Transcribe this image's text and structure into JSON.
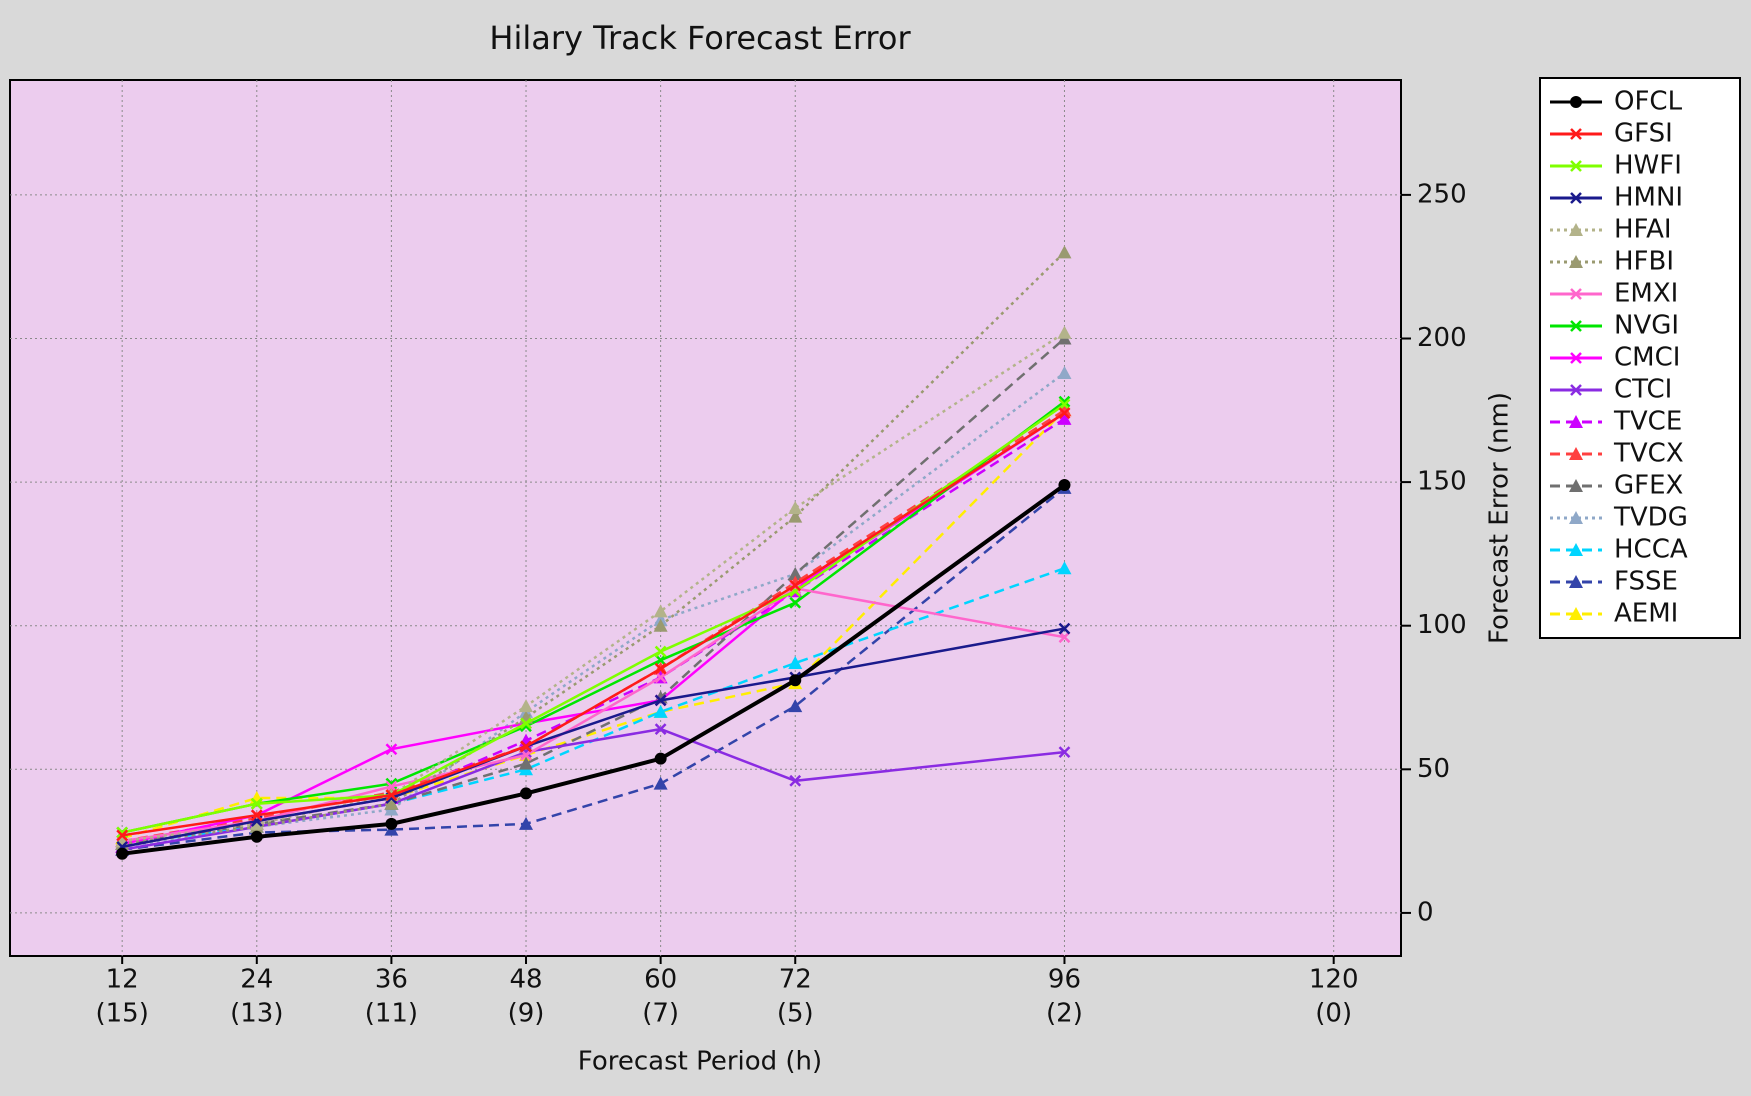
{
  "chart_data": {
    "type": "line",
    "title": "Hilary Track Forecast Error",
    "x_label": "Forecast Period (h)",
    "y_label": "Forecast Error (nm)",
    "x": [
      12,
      24,
      36,
      48,
      60,
      72,
      96
    ],
    "xticks": [
      12,
      24,
      36,
      48,
      60,
      72,
      96,
      120
    ],
    "xtick_counts": [
      "(15)",
      "(13)",
      "(11)",
      "(9)",
      "(7)",
      "(5)",
      "(2)",
      "(0)"
    ],
    "xlim": [
      2,
      126
    ],
    "ylim": [
      -15,
      290
    ],
    "yticks": [
      0,
      50,
      100,
      150,
      200,
      250
    ],
    "grid": true,
    "plot_background": "#ecccee",
    "series": [
      {
        "name": "OFCL",
        "color": "#000000",
        "marker": "o",
        "dash": "solid",
        "values": [
          20.6,
          26.5,
          31,
          41.6,
          53.7,
          81,
          149
        ]
      },
      {
        "name": "GFSI",
        "color": "#ff1a1a",
        "marker": "x",
        "dash": "solid",
        "values": [
          27,
          34,
          41,
          58,
          85,
          114,
          174
        ]
      },
      {
        "name": "HWFI",
        "color": "#7fff00",
        "marker": "x",
        "dash": "solid",
        "values": [
          28,
          38,
          41,
          66,
          91,
          112,
          177
        ]
      },
      {
        "name": "HMNI",
        "color": "#1a1a8c",
        "marker": "x",
        "dash": "solid",
        "values": [
          23,
          32,
          40,
          58,
          74,
          82,
          99
        ]
      },
      {
        "name": "HFAI",
        "color": "#b3b38a",
        "marker": "^",
        "dash": "dotted",
        "values": [
          25,
          31,
          41,
          72,
          105,
          141,
          202
        ]
      },
      {
        "name": "HFBI",
        "color": "#9a9a70",
        "marker": "^",
        "dash": "dotted",
        "values": [
          24,
          30,
          38,
          68,
          100,
          138,
          230
        ]
      },
      {
        "name": "EMXI",
        "color": "#ff66cc",
        "marker": "x",
        "dash": "solid",
        "values": [
          25,
          32,
          44,
          55,
          82,
          113,
          96
        ]
      },
      {
        "name": "NVGI",
        "color": "#00e600",
        "marker": "x",
        "dash": "solid",
        "values": [
          28,
          38,
          45,
          65,
          88,
          108,
          178
        ]
      },
      {
        "name": "CMCI",
        "color": "#ff00ff",
        "marker": "x",
        "dash": "solid",
        "values": [
          24,
          34,
          57,
          66,
          74,
          113,
          174
        ]
      },
      {
        "name": "CTCI",
        "color": "#8a2be2",
        "marker": "x",
        "dash": "solid",
        "values": [
          22,
          30,
          38,
          56,
          64,
          46,
          56
        ]
      },
      {
        "name": "TVCE",
        "color": "#cc00ff",
        "marker": "^",
        "dash": "dashed",
        "values": [
          23,
          32,
          40,
          60,
          82,
          112,
          172
        ]
      },
      {
        "name": "TVCX",
        "color": "#ff4040",
        "marker": "^",
        "dash": "dashed",
        "values": [
          25,
          33,
          42,
          58,
          85,
          115,
          175
        ]
      },
      {
        "name": "GFEX",
        "color": "#707070",
        "marker": "^",
        "dash": "dashed",
        "values": [
          24,
          31,
          38,
          52,
          75,
          118,
          200
        ]
      },
      {
        "name": "TVDG",
        "color": "#8fa8c8",
        "marker": "^",
        "dash": "dotted",
        "values": [
          23,
          30,
          36,
          70,
          102,
          118,
          188
        ]
      },
      {
        "name": "HCCA",
        "color": "#00d5ff",
        "marker": "^",
        "dash": "dashed",
        "values": [
          24,
          30,
          38,
          50,
          70,
          87,
          120
        ]
      },
      {
        "name": "FSSE",
        "color": "#3344aa",
        "marker": "^",
        "dash": "dashed",
        "values": [
          22,
          28,
          29,
          31,
          45,
          72,
          148
        ]
      },
      {
        "name": "AEMI",
        "color": "#ffee00",
        "marker": "^",
        "dash": "dashed",
        "values": [
          26,
          40,
          40,
          55,
          70,
          80,
          175
        ]
      }
    ]
  }
}
